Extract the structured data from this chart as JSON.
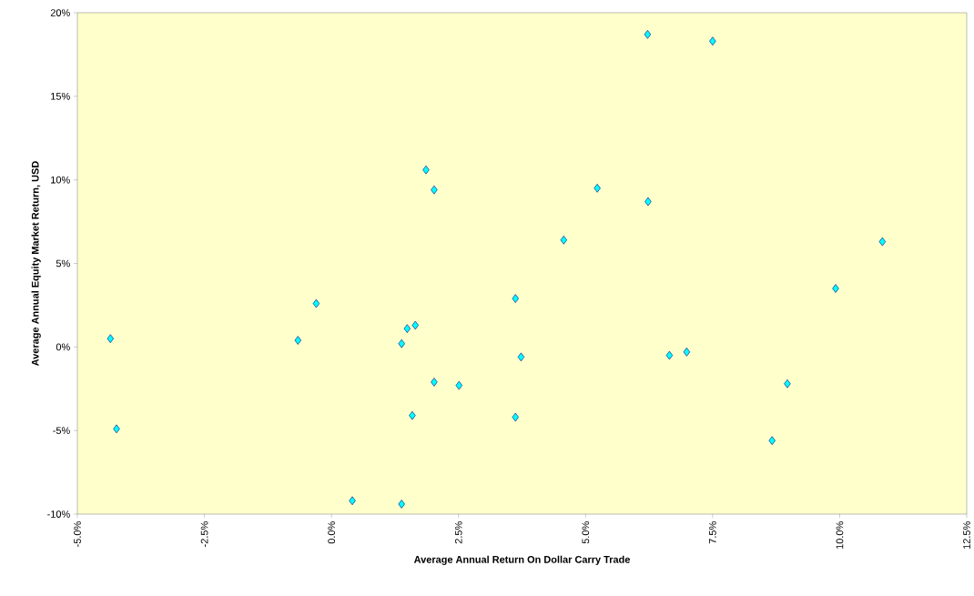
{
  "chart_data": {
    "type": "scatter",
    "xlabel": "Average Annual Return On Dollar Carry Trade",
    "ylabel": "Average Annual Equity Market Return, USD",
    "x": [
      -4.35,
      -4.23,
      -0.66,
      -0.3,
      0.41,
      1.38,
      1.38,
      1.49,
      1.65,
      1.59,
      1.86,
      2.02,
      2.02,
      2.51,
      3.62,
      3.62,
      3.73,
      4.57,
      5.23,
      6.22,
      6.23,
      6.65,
      6.99,
      7.5,
      8.67,
      8.97,
      9.92,
      10.84
    ],
    "values": [
      0.5,
      -4.9,
      0.4,
      2.6,
      -9.2,
      0.2,
      -9.4,
      1.1,
      1.3,
      -4.1,
      10.6,
      9.4,
      -2.1,
      -2.3,
      2.9,
      -4.2,
      -0.6,
      6.4,
      9.5,
      18.7,
      8.7,
      -0.5,
      -0.3,
      18.3,
      -5.6,
      -2.2,
      3.5,
      6.3
    ],
    "color": "#00ffff",
    "marker": "diamond",
    "grid": false,
    "xlim": [
      -5,
      12.5
    ],
    "ylim": [
      -10,
      20
    ],
    "xticks": [
      {
        "value": -5,
        "label": "-5.0%"
      },
      {
        "value": -2.5,
        "label": "-2.5%"
      },
      {
        "value": 0,
        "label": "0.0%"
      },
      {
        "value": 2.5,
        "label": "2.5%"
      },
      {
        "value": 5,
        "label": "5.0%"
      },
      {
        "value": 7.5,
        "label": "7.5%"
      },
      {
        "value": 10,
        "label": "10.0%"
      },
      {
        "value": 12.5,
        "label": "12.5%"
      }
    ],
    "yticks": [
      {
        "value": -10,
        "label": "-10%"
      },
      {
        "value": -5,
        "label": "-5%"
      },
      {
        "value": 0,
        "label": "0%"
      },
      {
        "value": 5,
        "label": "5%"
      },
      {
        "value": 10,
        "label": "10%"
      },
      {
        "value": 15,
        "label": "15%"
      },
      {
        "value": 20,
        "label": "20%"
      }
    ]
  }
}
